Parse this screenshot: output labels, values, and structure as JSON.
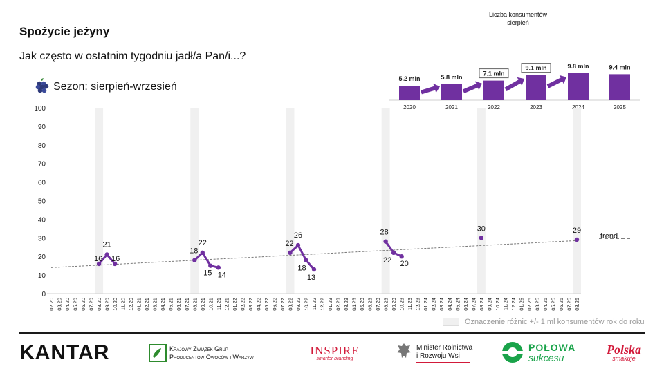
{
  "title": "Spożycie jeżyny",
  "subtitle": "Jak często w ostatnim tygodniu jadł/a Pan/i...?",
  "season": {
    "label": "Sezon: sierpień-wrzesień",
    "icon": "blackberry-icon"
  },
  "consumers": {
    "title_line1": "Liczba konsumentów",
    "title_line2": "sierpień",
    "years": [
      "2020",
      "2021",
      "2022",
      "2023",
      "2024",
      "2025"
    ],
    "values": [
      5.2,
      5.8,
      7.1,
      9.1,
      9.8,
      9.4
    ],
    "labels": [
      "5.2 mln",
      "5.8 mln",
      "7.1 mln",
      "9.1 mln",
      "9.8 mln",
      "9.4 mln"
    ],
    "boxed": [
      false,
      false,
      true,
      true,
      false,
      false
    ],
    "arrows_after": [
      0,
      1,
      2,
      3
    ],
    "color": "#7030a0"
  },
  "legend": {
    "trend": "trend",
    "note": "Oznaczenie różnic +/- 1 ml konsumentów rok do roku"
  },
  "logos": {
    "kantar": "KANTAR",
    "kzgpow_line1": "Krajowy Związek Grup",
    "kzgpow_line2": "Producentów Owoców i Warzyw",
    "inspire_line1": "INSPIRE",
    "inspire_line2": "smarter branding",
    "ministry_line1": "Minister Rolnictwa",
    "ministry_line2": "i Rozwoju Wsi",
    "polowa_line1": "POŁOWA",
    "polowa_line2": "sukcesu",
    "polska_line1": "Polska",
    "polska_line2": "smakuje"
  },
  "chart_data": {
    "type": "line",
    "title": "",
    "xlabel": "",
    "ylabel": "",
    "ylim": [
      0,
      100
    ],
    "yticks": [
      0,
      10,
      20,
      30,
      40,
      50,
      60,
      70,
      80,
      90,
      100
    ],
    "x": [
      "02.20",
      "03.20",
      "04.20",
      "05.20",
      "06.20",
      "07.20",
      "08.20",
      "09.20",
      "10.20",
      "11.20",
      "12.20",
      "01.21",
      "02.21",
      "03.21",
      "04.21",
      "05.21",
      "06.21",
      "07.21",
      "08.21",
      "09.21",
      "10.21",
      "11.21",
      "12.21",
      "01.22",
      "02.22",
      "03.22",
      "04.22",
      "05.22",
      "06.22",
      "07.22",
      "08.22",
      "09.22",
      "10.22",
      "11.22",
      "12.22",
      "01.23",
      "02.23",
      "03.23",
      "04.23",
      "05.23",
      "06.23",
      "07.23",
      "08.23",
      "09.23",
      "10.23",
      "11.23",
      "12.23",
      "01.24",
      "02.24",
      "03.24",
      "04.24",
      "05.24",
      "06.24",
      "07.24",
      "08.24",
      "09.24",
      "10.24",
      "11.24",
      "12.24",
      "01.25",
      "02.25",
      "03.25",
      "04.25",
      "05.25",
      "06.25",
      "07.25",
      "08.25"
    ],
    "series": [
      {
        "color": "#7030a0",
        "segments": [
          [
            [
              "08.20",
              16
            ],
            [
              "09.20",
              21
            ],
            [
              "10.20",
              16
            ]
          ],
          [
            [
              "08.21",
              18
            ],
            [
              "09.21",
              22
            ],
            [
              "10.21",
              15
            ],
            [
              "11.21",
              14
            ]
          ],
          [
            [
              "08.22",
              22
            ],
            [
              "09.22",
              26
            ],
            [
              "10.22",
              18
            ],
            [
              "11.22",
              13
            ]
          ],
          [
            [
              "08.23",
              28
            ],
            [
              "09.23",
              22
            ],
            [
              "10.23",
              20
            ]
          ],
          [
            [
              "08.24",
              30
            ]
          ],
          [
            [
              "08.25",
              29
            ]
          ]
        ]
      }
    ],
    "trend": {
      "start": [
        "02.20",
        14
      ],
      "end": [
        "08.25",
        28.5
      ],
      "style": "dashed"
    },
    "highlight_months": [
      "08.20",
      "08.21",
      "08.22",
      "08.23",
      "08.24",
      "08.25"
    ],
    "legend": {
      "position": "right",
      "entries": [
        "trend"
      ]
    }
  }
}
